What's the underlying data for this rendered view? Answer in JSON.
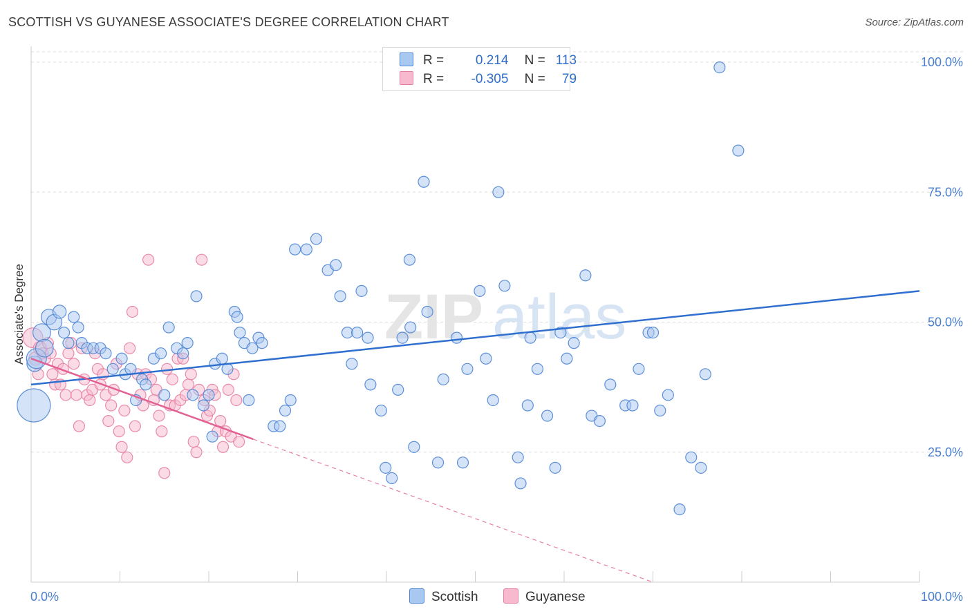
{
  "header": {
    "title": "SCOTTISH VS GUYANESE ASSOCIATE'S DEGREE CORRELATION CHART",
    "source": "Source: ZipAtlas.com"
  },
  "watermark": {
    "zip": "ZIP",
    "atlas": "atlas"
  },
  "legend": {
    "r_label": "R =",
    "n_label": "N =",
    "rows": [
      {
        "name": "Scottish",
        "r": "0.214",
        "n": "113",
        "color": "#a9c8f0"
      },
      {
        "name": "Guyanese",
        "r": "-0.305",
        "n": "79",
        "color": "#f7b9ce"
      }
    ]
  },
  "colors": {
    "scottish_fill": "#a9c8f0",
    "scottish_stroke": "#4d84d4",
    "scottish_line": "#2f6fcf",
    "guyanese_fill": "#f7b9ce",
    "guyanese_stroke": "#e77fa3",
    "guyanese_line": "#e26092",
    "grid": "#dddddd",
    "tick_text": "#4a7fd0"
  },
  "chart_data": {
    "type": "scatter",
    "title": "SCOTTISH VS GUYANESE ASSOCIATE'S DEGREE CORRELATION CHART",
    "xlabel": "",
    "ylabel": "Associate's Degree",
    "xlim": [
      0,
      100
    ],
    "ylim": [
      0,
      102
    ],
    "x_tick_labels": [
      "0.0%",
      "100.0%"
    ],
    "y_ticks": [
      25,
      50,
      75,
      100
    ],
    "y_tick_labels": [
      "25.0%",
      "50.0%",
      "75.0%",
      "100.0%"
    ],
    "grid": true,
    "legend_position": "bottom-center",
    "series": [
      {
        "name": "Scottish",
        "points": [
          [
            0.3,
            34,
            15
          ],
          [
            0.4,
            42,
            7
          ],
          [
            0.6,
            43,
            9
          ],
          [
            1.2,
            48,
            8
          ],
          [
            1.5,
            45,
            8
          ],
          [
            2,
            51,
            7
          ],
          [
            2.6,
            50,
            7
          ],
          [
            3.2,
            52,
            6
          ],
          [
            3.7,
            48,
            5
          ],
          [
            4.2,
            46,
            5
          ],
          [
            4.8,
            51,
            5
          ],
          [
            5.3,
            49,
            5
          ],
          [
            5.7,
            46,
            5
          ],
          [
            6.3,
            45,
            5
          ],
          [
            7.0,
            45,
            5
          ],
          [
            7.8,
            45,
            5
          ],
          [
            8.4,
            44,
            5
          ],
          [
            9.2,
            41,
            5
          ],
          [
            10.2,
            43,
            5
          ],
          [
            10.6,
            40,
            5
          ],
          [
            11.2,
            41,
            5
          ],
          [
            11.8,
            35,
            5
          ],
          [
            12.5,
            39,
            5
          ],
          [
            12.9,
            38,
            5
          ],
          [
            13.8,
            43,
            5
          ],
          [
            14.6,
            44,
            5
          ],
          [
            15.0,
            36,
            5
          ],
          [
            15.5,
            49,
            5
          ],
          [
            16.4,
            45,
            5
          ],
          [
            17.1,
            44,
            5
          ],
          [
            17.6,
            46,
            5
          ],
          [
            18.2,
            36,
            5
          ],
          [
            18.6,
            55,
            5
          ],
          [
            19.4,
            34,
            5
          ],
          [
            20.0,
            36,
            5
          ],
          [
            20.4,
            28,
            5
          ],
          [
            20.7,
            42,
            5
          ],
          [
            21.5,
            43,
            5
          ],
          [
            22.1,
            41,
            5
          ],
          [
            22.9,
            52,
            5
          ],
          [
            23.2,
            51,
            5
          ],
          [
            23.5,
            48,
            5
          ],
          [
            24.0,
            46,
            5
          ],
          [
            24.5,
            35,
            5
          ],
          [
            24.9,
            45,
            5
          ],
          [
            25.6,
            47,
            5
          ],
          [
            26.0,
            46,
            5
          ],
          [
            27.3,
            30,
            5
          ],
          [
            28.0,
            30,
            5
          ],
          [
            28.6,
            33,
            5
          ],
          [
            29.2,
            35,
            5
          ],
          [
            29.7,
            64,
            5
          ],
          [
            31.0,
            64,
            5
          ],
          [
            32.1,
            66,
            5
          ],
          [
            33.4,
            60,
            5
          ],
          [
            34.3,
            61,
            5
          ],
          [
            34.8,
            55,
            5
          ],
          [
            35.6,
            48,
            5
          ],
          [
            36.1,
            42,
            5
          ],
          [
            36.7,
            48,
            5
          ],
          [
            37.2,
            56,
            5
          ],
          [
            37.9,
            47,
            5
          ],
          [
            38.2,
            38,
            5
          ],
          [
            39.4,
            33,
            5
          ],
          [
            39.9,
            22,
            5
          ],
          [
            40.6,
            20,
            5
          ],
          [
            41.3,
            37,
            5
          ],
          [
            41.8,
            47,
            5
          ],
          [
            42.6,
            62,
            5
          ],
          [
            42.7,
            49,
            5
          ],
          [
            43.1,
            26,
            5
          ],
          [
            44.2,
            77,
            5
          ],
          [
            44.6,
            52,
            5
          ],
          [
            45.8,
            23,
            5
          ],
          [
            46.4,
            39,
            5
          ],
          [
            47.9,
            47,
            5
          ],
          [
            48.6,
            23,
            5
          ],
          [
            49.1,
            41,
            5
          ],
          [
            50.5,
            56,
            5
          ],
          [
            51.2,
            43,
            5
          ],
          [
            52.0,
            35,
            5
          ],
          [
            52.6,
            75,
            5
          ],
          [
            53.3,
            57,
            5
          ],
          [
            54.8,
            24,
            5
          ],
          [
            55.1,
            19,
            5
          ],
          [
            55.9,
            34,
            5
          ],
          [
            56.2,
            47,
            5
          ],
          [
            57.0,
            41,
            5
          ],
          [
            58.1,
            32,
            5
          ],
          [
            59.0,
            22,
            5
          ],
          [
            59.6,
            48,
            5
          ],
          [
            60.3,
            43,
            5
          ],
          [
            61.1,
            46,
            5
          ],
          [
            62.4,
            59,
            5
          ],
          [
            63.1,
            32,
            5
          ],
          [
            64.0,
            31,
            5
          ],
          [
            65.2,
            38,
            5
          ],
          [
            66.9,
            34,
            5
          ],
          [
            67.7,
            34,
            5
          ],
          [
            68.4,
            41,
            5
          ],
          [
            69.5,
            48,
            5
          ],
          [
            70.0,
            48,
            5
          ],
          [
            70.8,
            33,
            5
          ],
          [
            71.7,
            36,
            5
          ],
          [
            73.0,
            14,
            5
          ],
          [
            74.3,
            24,
            5
          ],
          [
            75.4,
            22,
            5
          ],
          [
            75.9,
            40,
            5
          ],
          [
            77.5,
            99,
            5
          ],
          [
            79.6,
            83,
            5
          ]
        ]
      },
      {
        "name": "Guyanese",
        "points": [
          [
            0.2,
            47,
            9
          ],
          [
            0.5,
            43,
            6
          ],
          [
            0.8,
            40,
            5
          ],
          [
            1.0,
            45,
            6
          ],
          [
            1.3,
            44,
            5
          ],
          [
            1.6,
            43,
            5
          ],
          [
            1.9,
            46,
            5
          ],
          [
            2.2,
            44,
            5
          ],
          [
            2.4,
            40,
            5
          ],
          [
            2.7,
            38,
            5
          ],
          [
            3.0,
            42,
            5
          ],
          [
            3.3,
            38,
            5
          ],
          [
            3.6,
            41,
            5
          ],
          [
            3.9,
            36,
            5
          ],
          [
            4.2,
            44,
            5
          ],
          [
            4.5,
            46,
            5
          ],
          [
            4.8,
            42,
            5
          ],
          [
            5.1,
            36,
            5
          ],
          [
            5.4,
            30,
            5
          ],
          [
            5.7,
            45,
            5
          ],
          [
            6.0,
            39,
            5
          ],
          [
            6.3,
            36,
            5
          ],
          [
            6.6,
            35,
            5
          ],
          [
            6.9,
            37,
            5
          ],
          [
            7.2,
            44,
            5
          ],
          [
            7.5,
            41,
            5
          ],
          [
            7.8,
            38,
            5
          ],
          [
            8.1,
            40,
            5
          ],
          [
            8.4,
            36,
            5
          ],
          [
            8.7,
            31,
            5
          ],
          [
            9.0,
            34,
            5
          ],
          [
            9.3,
            37,
            5
          ],
          [
            9.6,
            42,
            5
          ],
          [
            9.9,
            29,
            5
          ],
          [
            10.2,
            26,
            5
          ],
          [
            10.5,
            33,
            5
          ],
          [
            10.8,
            24,
            5
          ],
          [
            11.1,
            45,
            5
          ],
          [
            11.4,
            52,
            5
          ],
          [
            11.7,
            30,
            5
          ],
          [
            12.0,
            40,
            5
          ],
          [
            12.3,
            36,
            5
          ],
          [
            12.6,
            34,
            5
          ],
          [
            12.9,
            40,
            5
          ],
          [
            13.2,
            62,
            5
          ],
          [
            13.5,
            39,
            5
          ],
          [
            13.8,
            35,
            5
          ],
          [
            14.1,
            37,
            5
          ],
          [
            14.4,
            32,
            5
          ],
          [
            14.7,
            29,
            5
          ],
          [
            15.0,
            21,
            5
          ],
          [
            15.3,
            41,
            5
          ],
          [
            15.6,
            34,
            5
          ],
          [
            15.9,
            39,
            5
          ],
          [
            16.2,
            34,
            5
          ],
          [
            16.5,
            43,
            5
          ],
          [
            16.8,
            35,
            5
          ],
          [
            17.1,
            43,
            5
          ],
          [
            17.4,
            36,
            5
          ],
          [
            17.7,
            38,
            5
          ],
          [
            18.0,
            40,
            5
          ],
          [
            18.3,
            27,
            5
          ],
          [
            18.6,
            25,
            5
          ],
          [
            18.9,
            37,
            5
          ],
          [
            19.2,
            62,
            5
          ],
          [
            19.5,
            35,
            5
          ],
          [
            19.8,
            32,
            5
          ],
          [
            20.1,
            33,
            5
          ],
          [
            20.4,
            37,
            5
          ],
          [
            20.7,
            36,
            5
          ],
          [
            21.0,
            29,
            5
          ],
          [
            21.3,
            31,
            5
          ],
          [
            21.6,
            26,
            5
          ],
          [
            21.9,
            29,
            5
          ],
          [
            22.2,
            37,
            5
          ],
          [
            22.5,
            28,
            5
          ],
          [
            22.8,
            40,
            5
          ],
          [
            23.1,
            35,
            5
          ],
          [
            23.4,
            27,
            5
          ]
        ]
      }
    ],
    "trend_lines": [
      {
        "series": "Scottish",
        "x": [
          0,
          100
        ],
        "y": [
          38,
          56
        ],
        "dashed_beyond": null
      },
      {
        "series": "Guyanese",
        "x": [
          0,
          25
        ],
        "y": [
          43,
          27.5
        ],
        "dashed_to": [
          70,
          0
        ]
      }
    ]
  }
}
